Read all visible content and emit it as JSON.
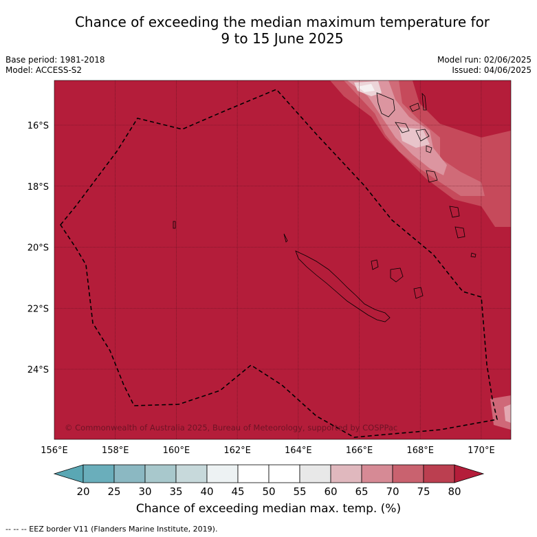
{
  "title_line1": "Chance of exceeding the median maximum temperature for",
  "title_line2": "9 to 15 June 2025",
  "base_period": "Base period: 1981-2018",
  "model": "Model: ACCESS-S2",
  "model_run": "Model run: 02/06/2025",
  "issued": "Issued: 04/06/2025",
  "copyright": "© Commonwealth of Australia 2025, Bureau of Meteorology, supported by COSPPac",
  "footer_note": "-- -- -- EEZ border V11 (Flanders Marine Institute, 2019).",
  "map": {
    "lon_ticks": [
      "156°E",
      "158°E",
      "160°E",
      "162°E",
      "164°E",
      "166°E",
      "168°E",
      "170°E"
    ],
    "lat_ticks": [
      "16°S",
      "18°S",
      "20°S",
      "22°S",
      "24°S"
    ],
    "base_color": "#b41d3a"
  },
  "colorbar": {
    "label": "Chance of exceeding median max. temp. (%)",
    "ticks": [
      "20",
      "25",
      "30",
      "35",
      "40",
      "45",
      "50",
      "55",
      "60",
      "65",
      "70",
      "75",
      "80"
    ],
    "colors": [
      "#5aa7b4",
      "#6aaebb",
      "#8bb8c2",
      "#a8c8cc",
      "#c7d9db",
      "#edf2f3",
      "#ffffff",
      "#ffffff",
      "#e8e8e8",
      "#e0b8be",
      "#d68a95",
      "#c9626f",
      "#bb3f50",
      "#b41d3a"
    ]
  }
}
